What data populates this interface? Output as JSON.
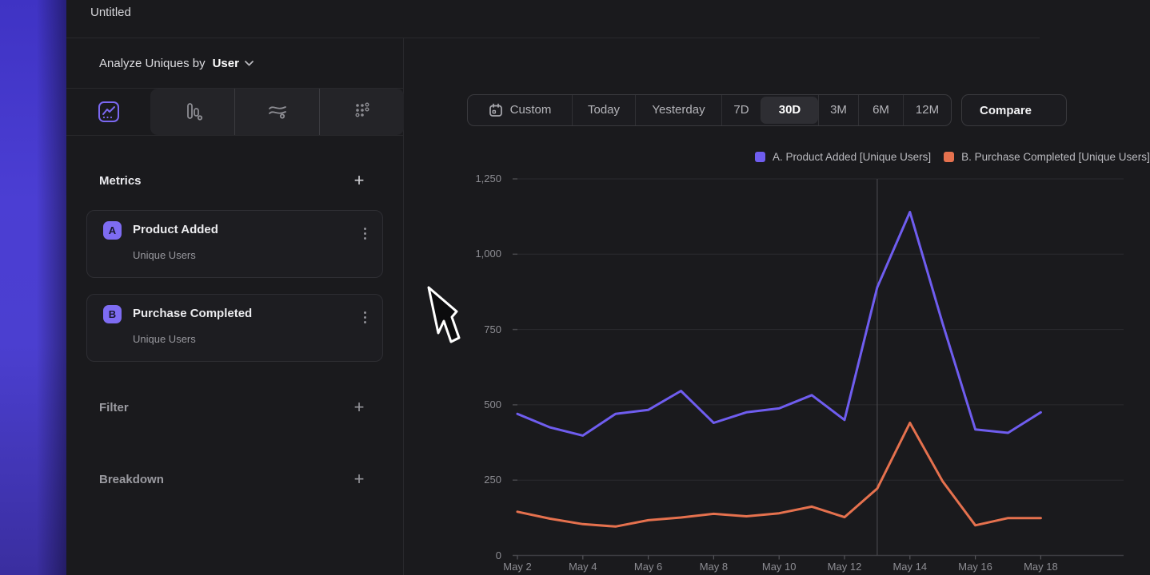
{
  "header": {
    "title": "Untitled"
  },
  "sidebar": {
    "analyze": {
      "prefix": "Analyze Uniques by",
      "selected_option": "User"
    },
    "tabs": [
      {
        "icon": "line-chart-icon",
        "selected": true
      },
      {
        "icon": "bar-chart-icon",
        "selected": false
      },
      {
        "icon": "flows-icon",
        "selected": false
      },
      {
        "icon": "retention-grid-icon",
        "selected": false
      }
    ],
    "metrics": {
      "label": "Metrics",
      "add_label": "+",
      "items": [
        {
          "badge": "A",
          "title": "Product Added",
          "subtitle": "Unique Users"
        },
        {
          "badge": "B",
          "title": "Purchase Completed",
          "subtitle": "Unique Users"
        }
      ]
    },
    "filter": {
      "label": "Filter",
      "add_label": "+"
    },
    "breakdown": {
      "label": "Breakdown",
      "add_label": "+"
    }
  },
  "toolbar": {
    "ranges": [
      "Custom",
      "Today",
      "Yesterday",
      "7D",
      "30D",
      "3M",
      "6M",
      "12M"
    ],
    "selected_range": "30D",
    "compare_label": "Compare"
  },
  "chart_data": {
    "type": "line",
    "x": [
      "May 2",
      "May 3",
      "May 4",
      "May 5",
      "May 6",
      "May 7",
      "May 8",
      "May 9",
      "May 10",
      "May 11",
      "May 12",
      "May 13",
      "May 14",
      "May 15",
      "May 16",
      "May 17",
      "May 18"
    ],
    "x_tick_step": 2,
    "series": [
      {
        "name": "A. Product Added [Unique Users]",
        "color": "#6f5def",
        "values": [
          470,
          425,
          398,
          470,
          483,
          546,
          440,
          475,
          488,
          532,
          450,
          890,
          1140,
          770,
          418,
          407,
          475
        ]
      },
      {
        "name": "B. Purchase Completed [Unique Users]",
        "color": "#e5714e",
        "values": [
          145,
          122,
          104,
          96,
          117,
          126,
          138,
          130,
          140,
          162,
          127,
          222,
          440,
          246,
          100,
          124,
          124
        ]
      }
    ],
    "y_ticks": [
      0,
      250,
      500,
      750,
      1000,
      1250
    ],
    "y_tick_labels": [
      "0",
      "250",
      "500",
      "750",
      "1,000",
      "1,250"
    ],
    "ylim": [
      0,
      1250
    ],
    "grid": true,
    "marker_x_index": 11,
    "legend_position": "top-right"
  },
  "colors": {
    "background": "#1a1a1d",
    "rail_top": "#3f33c4",
    "rail_bottom": "#3a2e9f",
    "accent_purple": "#6f5def",
    "accent_orange": "#e5714e",
    "badge_purple": "#7e6cf2",
    "gridline": "#2a2a2e",
    "axis": "#3d3d42",
    "marker_line": "#46464a"
  }
}
